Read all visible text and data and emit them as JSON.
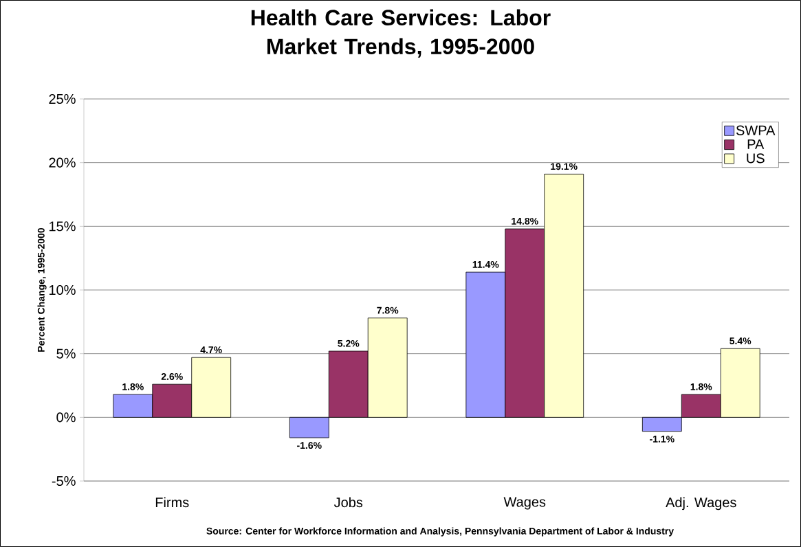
{
  "chart_data": {
    "type": "bar",
    "title": "Health Care Services: Labor Market Trends, 1995-2000",
    "ylabel": "Percent Change, 1995-2000",
    "categories": [
      "Firms",
      "Jobs",
      "Wages",
      "Adj. Wages"
    ],
    "series": [
      {
        "name": "SWPA",
        "color": "#9999ff",
        "values": [
          1.8,
          -1.6,
          11.4,
          -1.1
        ],
        "value_labels": [
          "1.8%",
          "-1.6%",
          "11.4%",
          "-1.1%"
        ]
      },
      {
        "name": "PA",
        "color": "#993366",
        "values": [
          2.6,
          5.2,
          14.8,
          1.8
        ],
        "value_labels": [
          "2.6%",
          "5.2%",
          "14.8%",
          "1.8%"
        ]
      },
      {
        "name": "US",
        "color": "#ffffcc",
        "values": [
          4.7,
          7.8,
          19.1,
          5.4
        ],
        "value_labels": [
          "4.7%",
          "7.8%",
          "19.1%",
          "5.4%"
        ]
      }
    ],
    "ylim": [
      -5,
      25
    ],
    "yticks": [
      {
        "value": -5,
        "label": "-5%"
      },
      {
        "value": 0,
        "label": "0%"
      },
      {
        "value": 5,
        "label": "5%"
      },
      {
        "value": 10,
        "label": "10%"
      },
      {
        "value": 15,
        "label": "15%"
      },
      {
        "value": 20,
        "label": "20%"
      },
      {
        "value": 25,
        "label": "25%"
      }
    ],
    "grid": "y",
    "legend": "top right",
    "annotations": [
      "Source: Center for Workforce Information and Analysis, Pennsylvania Department of Labor & Industry"
    ]
  }
}
